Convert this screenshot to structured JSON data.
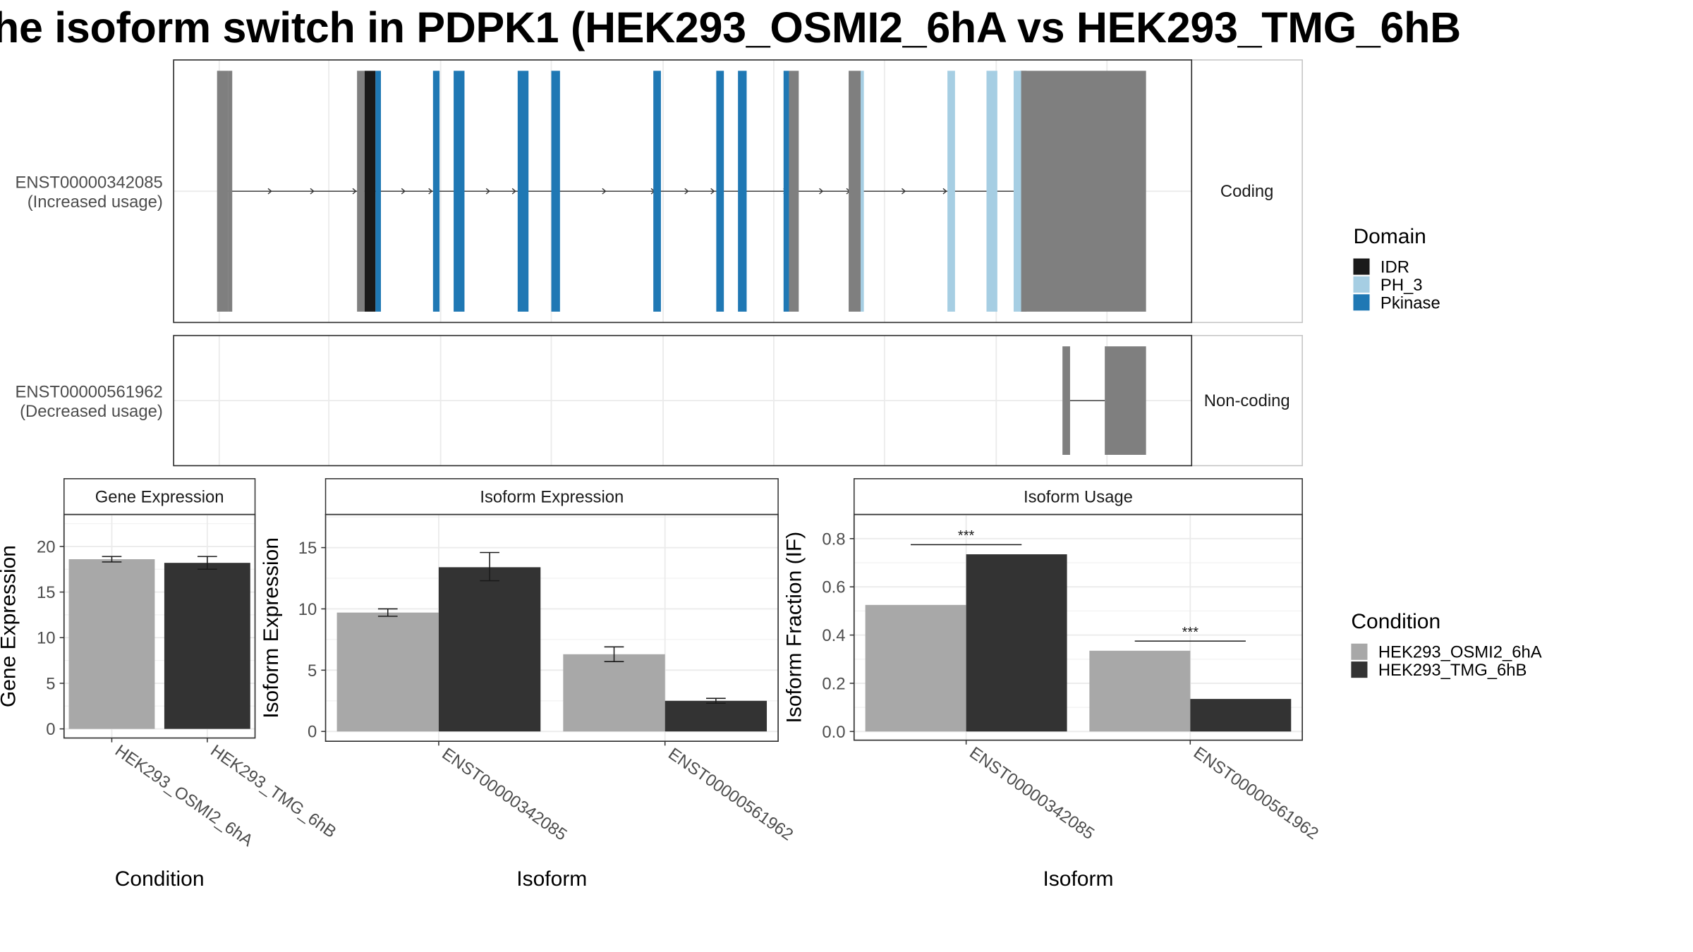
{
  "title": "he isoform switch in PDPK1 (HEK293_OSMI2_6hA vs HEK293_TMG_6hB",
  "colors": {
    "IDR": "#1a1a1a",
    "PH_3": "#a6cee3",
    "Pkinase": "#1f78b4",
    "exon_plain": "#7f7f7f",
    "HEK293_OSMI2_6hA": "#a8a8a8",
    "HEK293_TMG_6hB": "#333333"
  },
  "isoform_structure": {
    "rows": [
      {
        "id": "ENST00000342085",
        "usage": "(Increased usage)",
        "strip": "Coding",
        "utr_start": [
          200,
          210
        ],
        "utr_end": [
          940,
          1056
        ],
        "exons": [
          {
            "start": 210,
            "end": 214,
            "domain": "none"
          },
          {
            "start": 329,
            "end": 336,
            "domain": "none"
          },
          {
            "start": 336,
            "end": 346,
            "domain": "IDR"
          },
          {
            "start": 346,
            "end": 351,
            "domain": "Pkinase"
          },
          {
            "start": 399,
            "end": 405,
            "domain": "Pkinase"
          },
          {
            "start": 418,
            "end": 428,
            "domain": "Pkinase"
          },
          {
            "start": 477,
            "end": 487,
            "domain": "Pkinase"
          },
          {
            "start": 508,
            "end": 516,
            "domain": "Pkinase"
          },
          {
            "start": 602,
            "end": 609,
            "domain": "Pkinase"
          },
          {
            "start": 660,
            "end": 667,
            "domain": "Pkinase"
          },
          {
            "start": 680,
            "end": 688,
            "domain": "Pkinase"
          },
          {
            "start": 722,
            "end": 727,
            "domain": "Pkinase"
          },
          {
            "start": 727,
            "end": 736,
            "domain": "none"
          },
          {
            "start": 782,
            "end": 793,
            "domain": "none"
          },
          {
            "start": 793,
            "end": 796,
            "domain": "PH_3"
          },
          {
            "start": 873,
            "end": 880,
            "domain": "PH_3"
          },
          {
            "start": 909,
            "end": 919,
            "domain": "PH_3"
          },
          {
            "start": 934,
            "end": 941,
            "domain": "PH_3"
          },
          {
            "start": 941,
            "end": 946,
            "domain": "none"
          }
        ],
        "intron": [
          210,
          946
        ],
        "arrows": [
          250,
          289,
          328,
          373,
          398,
          451,
          475,
          558,
          603,
          634,
          658,
          725,
          758,
          783,
          834,
          872
        ]
      },
      {
        "id": "ENST00000561962",
        "usage": "(Decreased usage)",
        "strip": "Non-coding",
        "utr_start": null,
        "utr_end": null,
        "exons": [
          {
            "start": 979,
            "end": 986,
            "domain": "none"
          },
          {
            "start": 1018,
            "end": 1056,
            "domain": "none"
          }
        ],
        "intron": [
          986,
          1018
        ],
        "arrows": []
      }
    ],
    "x_range": [
      160,
      1098
    ]
  },
  "legends": {
    "domain": {
      "title": "Domain",
      "items": [
        "IDR",
        "PH_3",
        "Pkinase"
      ]
    },
    "condition": {
      "title": "Condition",
      "items": [
        "HEK293_OSMI2_6hA",
        "HEK293_TMG_6hB"
      ]
    }
  },
  "chart_data": [
    {
      "type": "bar",
      "title": "Gene Expression",
      "xlabel": "Condition",
      "ylabel": "Gene Expression",
      "ylim": [
        -1,
        23.5
      ],
      "yticks": [
        0,
        5,
        10,
        15,
        20
      ],
      "categories": [
        "HEK293_OSMI2_6hA",
        "HEK293_TMG_6hB"
      ],
      "series": [
        {
          "name": "HEK293_OSMI2_6hA",
          "values": [
            18.6,
            null
          ],
          "err_low": [
            18.3,
            null
          ],
          "err_high": [
            18.9,
            null
          ]
        },
        {
          "name": "HEK293_TMG_6hB",
          "values": [
            null,
            18.2
          ],
          "err_low": [
            null,
            17.5
          ],
          "err_high": [
            null,
            18.9
          ]
        }
      ]
    },
    {
      "type": "bar",
      "title": "Isoform Expression",
      "xlabel": "Isoform",
      "ylabel": "Isoform Expression",
      "ylim": [
        -0.8,
        17.7
      ],
      "yticks": [
        0,
        5,
        10,
        15
      ],
      "categories": [
        "ENST00000342085",
        "ENST00000561962"
      ],
      "series": [
        {
          "name": "HEK293_OSMI2_6hA",
          "values": [
            9.7,
            6.3
          ],
          "err_low": [
            9.4,
            5.7
          ],
          "err_high": [
            10.0,
            6.9
          ]
        },
        {
          "name": "HEK293_TMG_6hB",
          "values": [
            13.4,
            2.5
          ],
          "err_low": [
            12.3,
            2.3
          ],
          "err_high": [
            14.6,
            2.7
          ]
        }
      ]
    },
    {
      "type": "bar",
      "title": "Isoform Usage",
      "xlabel": "Isoform",
      "ylabel": "Isoform Fraction (IF)",
      "ylim": [
        -0.036,
        0.9
      ],
      "yticks": [
        "0.0",
        "0.2",
        "0.4",
        "0.6",
        "0.8"
      ],
      "categories": [
        "ENST00000342085",
        "ENST00000561962"
      ],
      "series": [
        {
          "name": "HEK293_OSMI2_6hA",
          "values": [
            0.525,
            0.335
          ]
        },
        {
          "name": "HEK293_TMG_6hB",
          "values": [
            0.735,
            0.135
          ]
        }
      ],
      "significance": [
        {
          "category": "ENST00000342085",
          "label": "***",
          "y": 0.775
        },
        {
          "category": "ENST00000561962",
          "label": "***",
          "y": 0.375
        }
      ]
    }
  ]
}
